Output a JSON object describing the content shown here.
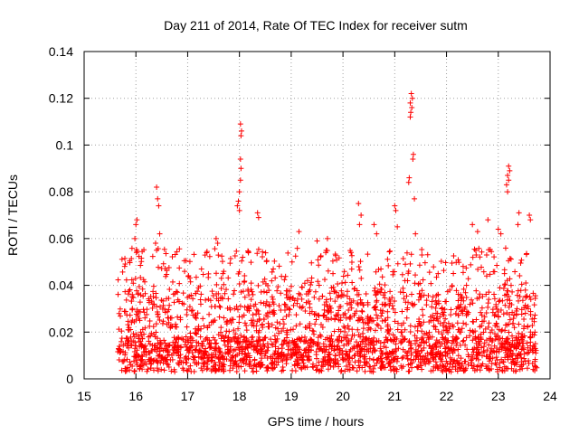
{
  "chart_data": {
    "type": "scatter",
    "title": "Day 211 of 2014, Rate Of TEC Index for receiver sutm",
    "xlabel": "GPS time / hours",
    "ylabel": "ROTI / TECUs",
    "xlim": [
      15,
      24
    ],
    "ylim": [
      0,
      0.14
    ],
    "xticks": [
      "15",
      "16",
      "17",
      "18",
      "19",
      "20",
      "21",
      "22",
      "23",
      "24"
    ],
    "yticks": [
      "0",
      "0.02",
      "0.04",
      "0.06",
      "0.08",
      "0.1",
      "0.12",
      "0.14"
    ],
    "grid": true,
    "marker": "plus",
    "color": "#ff0000",
    "series": [
      {
        "x_range": [
          15.65,
          23.75
        ],
        "points": [
          [
            16.4,
            0.082
          ],
          [
            16.42,
            0.077
          ],
          [
            16.44,
            0.074
          ],
          [
            16.38,
            0.058
          ],
          [
            16.46,
            0.062
          ],
          [
            16.0,
            0.066
          ],
          [
            16.02,
            0.068
          ],
          [
            15.98,
            0.06
          ],
          [
            17.55,
            0.06
          ],
          [
            17.58,
            0.058
          ],
          [
            18.02,
            0.109
          ],
          [
            18.04,
            0.106
          ],
          [
            18.03,
            0.104
          ],
          [
            18.02,
            0.094
          ],
          [
            18.03,
            0.09
          ],
          [
            18.02,
            0.085
          ],
          [
            18.0,
            0.08
          ],
          [
            17.98,
            0.076
          ],
          [
            17.96,
            0.074
          ],
          [
            18.0,
            0.072
          ],
          [
            18.35,
            0.071
          ],
          [
            18.37,
            0.069
          ],
          [
            19.15,
            0.063
          ],
          [
            19.7,
            0.06
          ],
          [
            19.5,
            0.059
          ],
          [
            20.3,
            0.075
          ],
          [
            20.35,
            0.07
          ],
          [
            20.32,
            0.066
          ],
          [
            20.6,
            0.066
          ],
          [
            20.65,
            0.062
          ],
          [
            21.0,
            0.074
          ],
          [
            21.02,
            0.072
          ],
          [
            21.05,
            0.065
          ],
          [
            21.32,
            0.122
          ],
          [
            21.34,
            0.12
          ],
          [
            21.3,
            0.118
          ],
          [
            21.33,
            0.116
          ],
          [
            21.31,
            0.114
          ],
          [
            21.3,
            0.112
          ],
          [
            21.36,
            0.096
          ],
          [
            21.35,
            0.094
          ],
          [
            21.28,
            0.086
          ],
          [
            21.27,
            0.084
          ],
          [
            21.38,
            0.077
          ],
          [
            21.4,
            0.062
          ],
          [
            22.5,
            0.066
          ],
          [
            22.6,
            0.063
          ],
          [
            22.8,
            0.068
          ],
          [
            23.2,
            0.091
          ],
          [
            23.22,
            0.089
          ],
          [
            23.18,
            0.087
          ],
          [
            23.2,
            0.085
          ],
          [
            23.16,
            0.083
          ],
          [
            23.18,
            0.08
          ],
          [
            23.4,
            0.071
          ],
          [
            23.38,
            0.066
          ],
          [
            23.6,
            0.07
          ],
          [
            23.62,
            0.068
          ],
          [
            23.0,
            0.064
          ],
          [
            23.05,
            0.062
          ]
        ]
      }
    ]
  }
}
